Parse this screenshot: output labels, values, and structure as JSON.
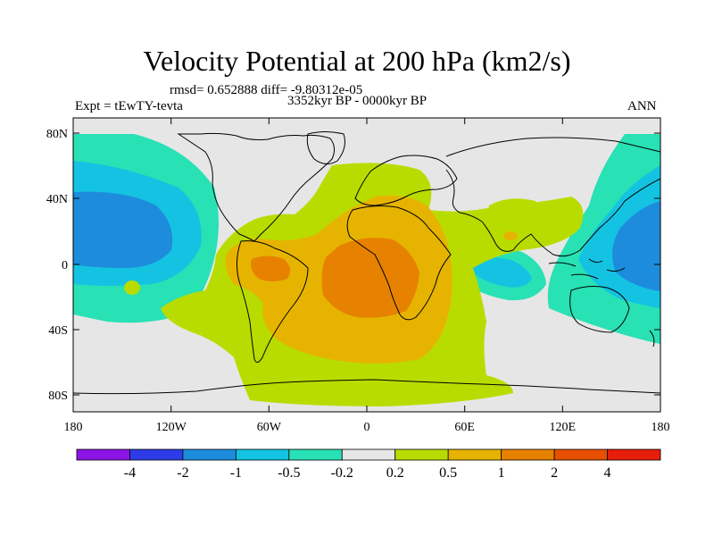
{
  "title": "Velocity Potential at 200 hPa (km2/s)",
  "stats_line": "rmsd= 0.652888 diff= -9.80312e-05",
  "period": "3352kyr BP - 0000kyr BP",
  "experiment": "Expt = tEwTY-tevta",
  "season": "ANN",
  "map": {
    "projection": "cylindrical equidistant",
    "lon_range": [
      -180,
      180
    ],
    "lat_range": [
      -90,
      90
    ],
    "lon_ticks": [
      "180",
      "120W",
      "60W",
      "0",
      "60E",
      "120E",
      "180"
    ],
    "lat_ticks": [
      "80N",
      "40N",
      "0",
      "40S",
      "80S"
    ]
  },
  "colorbar": {
    "labels": [
      "-4",
      "-2",
      "-1",
      "-0.5",
      "-0.2",
      "0.2",
      "0.5",
      "1",
      "2",
      "4"
    ],
    "colors": [
      "#8c14e6",
      "#2d3ce6",
      "#1e8cdc",
      "#14c3e1",
      "#28e1b4",
      "#e6e6e6",
      "#b9dc00",
      "#e6b400",
      "#e68200",
      "#e65000",
      "#e61e0a"
    ]
  },
  "colors": {
    "land_outline": "#000000",
    "background": "#e6e6e6"
  }
}
